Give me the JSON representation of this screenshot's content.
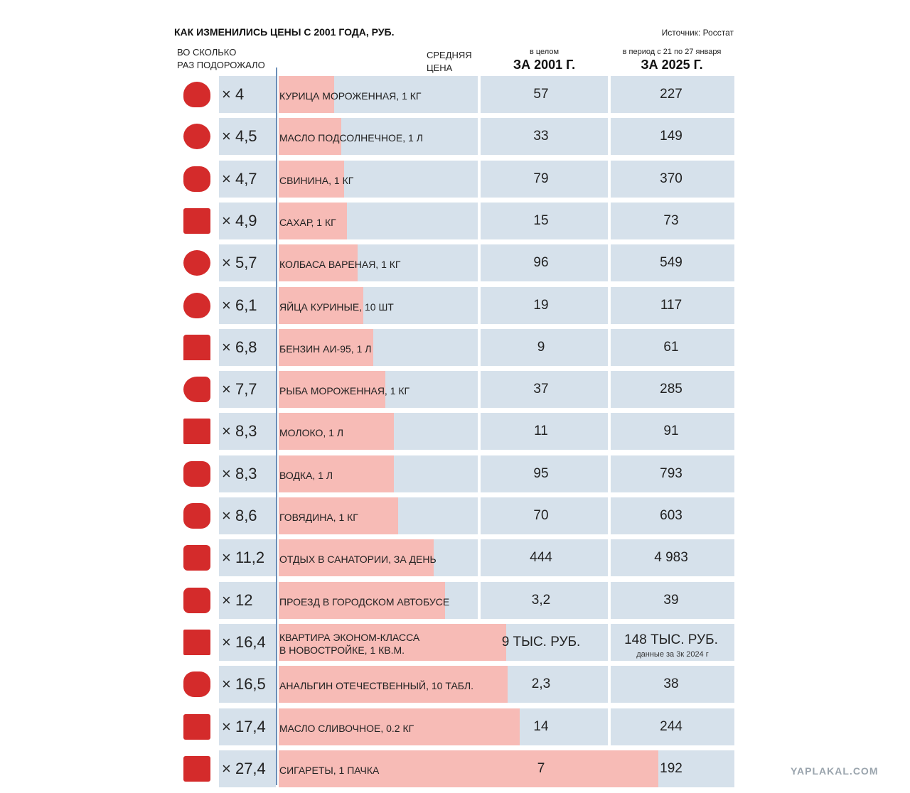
{
  "chart_data": {
    "type": "bar",
    "title": "КАК ИЗМЕНИЛИСЬ ЦЕНЫ С 2001 ГОДА, РУБ.",
    "source": "Источник: Росстат",
    "multiplier_header": "ВО СКОЛЬКО\nРАЗ ПОДОРОЖАЛО",
    "bar_header": "СРЕДНЯЯ\nЦЕНА",
    "col_2001": {
      "caption": "в целом",
      "title": "ЗА 2001 Г."
    },
    "col_2025": {
      "caption": "в период с 21 по 27 января",
      "title": "ЗА 2025 Г."
    },
    "categories": [
      "КУРИЦА МОРОЖЕННАЯ, 1 КГ",
      "МАСЛО ПОДСОЛНЕЧНОЕ, 1 Л",
      "СВИНИНА, 1 КГ",
      "САХАР, 1 КГ",
      "КОЛБАСА ВАРЕНАЯ, 1 КГ",
      "ЯЙЦА КУРИНЫЕ, 10 ШТ",
      "БЕНЗИН АИ-95, 1 Л",
      "РЫБА МОРОЖЕННАЯ, 1 КГ",
      "МОЛОКО, 1 Л",
      "ВОДКА, 1 Л",
      "ГОВЯДИНА, 1 КГ",
      "ОТДЫХ В САНАТОРИИ, ЗА ДЕНЬ",
      "ПРОЕЗД В ГОРОДСКОМ АВТОБУСЕ",
      "КВАРТИРА ЭКОНОМ-КЛАССА\nВ НОВОСТРОЙКЕ, 1 КВ.М.",
      "АНАЛЬГИН ОТЕЧЕСТВЕННЫЙ, 10 ТАБЛ.",
      "МАСЛО СЛИВОЧНОЕ, 0.2 КГ",
      "СИГАРЕТЫ, 1 ПАЧКА"
    ],
    "values": [
      4,
      4.5,
      4.7,
      4.9,
      5.7,
      6.1,
      6.8,
      7.7,
      8.3,
      8.3,
      8.6,
      11.2,
      12,
      16.4,
      16.5,
      17.4,
      27.4
    ],
    "value_labels": [
      "× 4",
      "× 4,5",
      "× 4,7",
      "× 4,9",
      "× 5,7",
      "× 6,1",
      "× 6,8",
      "× 7,7",
      "× 8,3",
      "× 8,3",
      "× 8,6",
      "× 11,2",
      "× 12",
      "× 16,4",
      "× 16,5",
      "× 17,4",
      "× 27,4"
    ],
    "color": "#f7bbb6",
    "price_2001": [
      57,
      33,
      79,
      15,
      96,
      19,
      9,
      37,
      11,
      95,
      70,
      444,
      "3,2",
      "9 ТЫС. РУБ.",
      "2,3",
      14,
      7
    ],
    "price_2025": [
      227,
      149,
      370,
      73,
      549,
      117,
      61,
      285,
      91,
      793,
      603,
      "4 983",
      39,
      "148 ТЫС. РУБ.",
      38,
      244,
      192
    ],
    "price_2025_note": "данные за 3к 2024 г",
    "watermark": "YAPLAKAL.COM"
  }
}
